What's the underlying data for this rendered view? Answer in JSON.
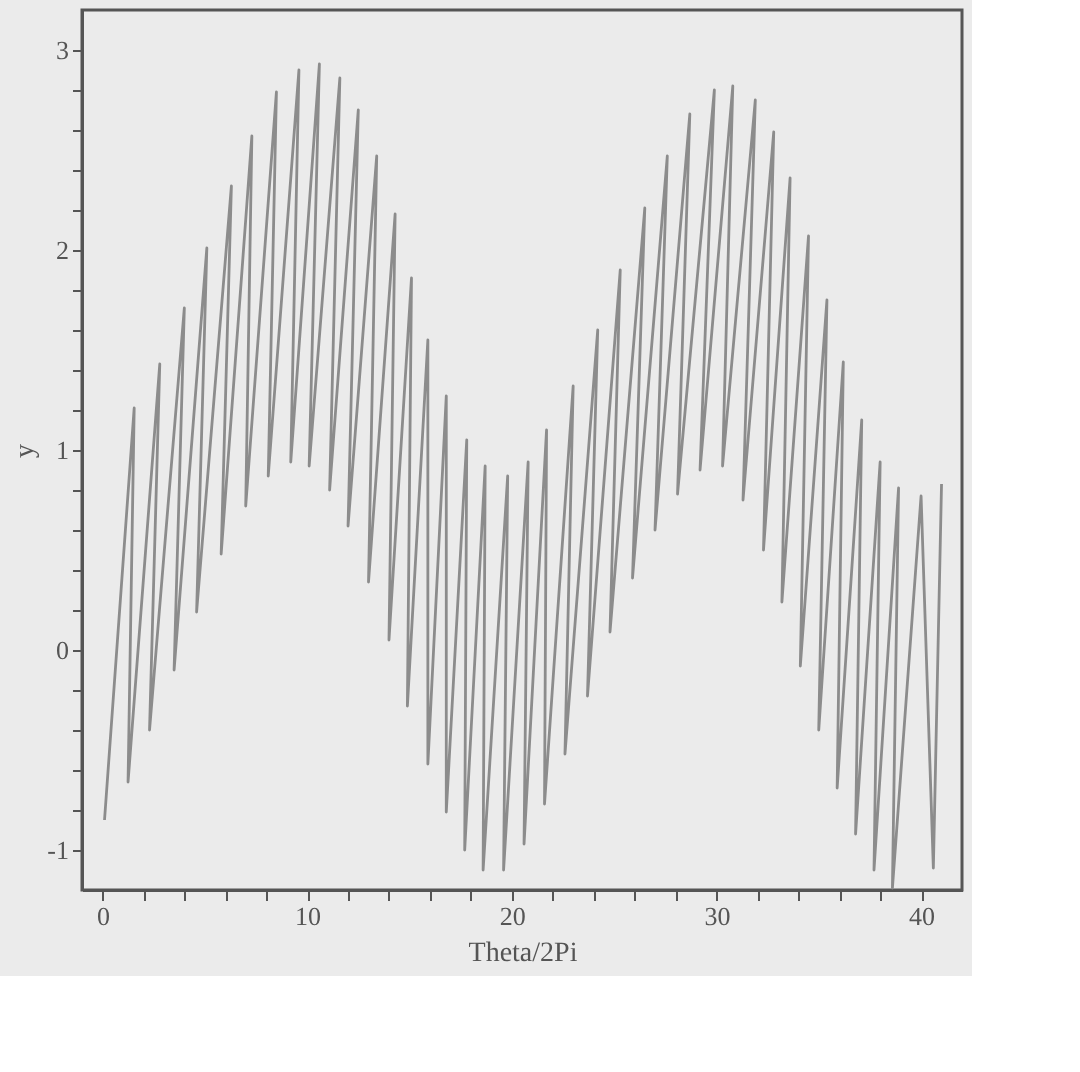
{
  "chart_data": {
    "type": "line",
    "xlabel": "Theta/2Pi",
    "ylabel": "y",
    "series": [
      {
        "color": "#8c8c8c",
        "x": [
          0.1,
          1.55,
          1.25,
          2.8,
          2.3,
          4.0,
          3.5,
          5.1,
          4.6,
          6.3,
          5.8,
          7.3,
          7.0,
          8.5,
          8.1,
          9.6,
          9.2,
          10.6,
          10.1,
          11.6,
          11.1,
          12.5,
          12.0,
          13.4,
          13.0,
          14.3,
          14.0,
          15.1,
          14.9,
          15.9,
          15.9,
          16.8,
          16.8,
          17.8,
          17.7,
          18.7,
          18.6,
          19.8,
          19.6,
          20.8,
          20.6,
          21.7,
          21.6,
          23.0,
          22.6,
          24.2,
          23.7,
          25.3,
          24.8,
          26.5,
          25.9,
          27.6,
          27.0,
          28.7,
          28.1,
          29.9,
          29.2,
          30.8,
          30.3,
          31.9,
          31.3,
          32.8,
          32.3,
          33.6,
          33.2,
          34.5,
          34.1,
          35.4,
          35.0,
          36.2,
          35.9,
          37.1,
          36.8,
          38.0,
          37.7,
          38.9,
          38.6,
          40.0,
          40.6,
          41.0
        ],
        "values": [
          -0.85,
          1.21,
          -0.66,
          1.43,
          -0.4,
          1.71,
          -0.1,
          2.01,
          0.19,
          2.32,
          0.48,
          2.57,
          0.72,
          2.79,
          0.87,
          2.9,
          0.94,
          2.93,
          0.92,
          2.86,
          0.8,
          2.7,
          0.62,
          2.47,
          0.34,
          2.18,
          0.05,
          1.86,
          -0.28,
          1.55,
          -0.57,
          1.27,
          -0.81,
          1.05,
          -1.0,
          0.92,
          -1.1,
          0.87,
          -1.1,
          0.94,
          -0.97,
          1.1,
          -0.77,
          1.32,
          -0.52,
          1.6,
          -0.23,
          1.9,
          0.09,
          2.21,
          0.36,
          2.47,
          0.6,
          2.68,
          0.78,
          2.8,
          0.9,
          2.82,
          0.92,
          2.75,
          0.75,
          2.59,
          0.5,
          2.36,
          0.24,
          2.07,
          -0.08,
          1.75,
          -0.4,
          1.44,
          -0.69,
          1.15,
          -0.92,
          0.94,
          -1.1,
          0.81,
          -1.19,
          0.77,
          -1.09,
          0.83
        ]
      }
    ],
    "xlim": [
      -1,
      42
    ],
    "xticks": [
      0,
      {
        "value": 2,
        "label": null
      },
      {
        "value": 4,
        "label": null
      },
      {
        "value": 6,
        "label": null
      },
      {
        "value": 8,
        "label": null
      },
      10,
      {
        "value": 12,
        "label": null
      },
      {
        "value": 14,
        "label": null
      },
      {
        "value": 16,
        "label": null
      },
      {
        "value": 18,
        "label": null
      },
      20,
      {
        "value": 22,
        "label": null
      },
      {
        "value": 24,
        "label": null
      },
      {
        "value": 26,
        "label": null
      },
      {
        "value": 28,
        "label": null
      },
      30,
      {
        "value": 32,
        "label": null
      },
      {
        "value": 34,
        "label": null
      },
      {
        "value": 36,
        "label": null
      },
      {
        "value": 38,
        "label": null
      },
      40
    ],
    "ylim": [
      -1.2,
      3.2
    ],
    "yticks": [
      -1,
      {
        "value": -0.8,
        "label": null
      },
      {
        "value": -0.6,
        "label": null
      },
      {
        "value": -0.4,
        "label": null
      },
      {
        "value": -0.2,
        "label": null
      },
      0,
      {
        "value": 0.2,
        "label": null
      },
      {
        "value": 0.4,
        "label": null
      },
      {
        "value": 0.6,
        "label": null
      },
      {
        "value": 0.8,
        "label": null
      },
      1,
      {
        "value": 1.2,
        "label": null
      },
      {
        "value": 1.4,
        "label": null
      },
      {
        "value": 1.6,
        "label": null
      },
      {
        "value": 1.8,
        "label": null
      },
      2,
      {
        "value": 2.2,
        "label": null
      },
      {
        "value": 2.4,
        "label": null
      },
      {
        "value": 2.6,
        "label": null
      },
      {
        "value": 2.8,
        "label": null
      },
      3
    ],
    "grid": false,
    "legend": false,
    "marker": "none",
    "line_style": "solid"
  }
}
